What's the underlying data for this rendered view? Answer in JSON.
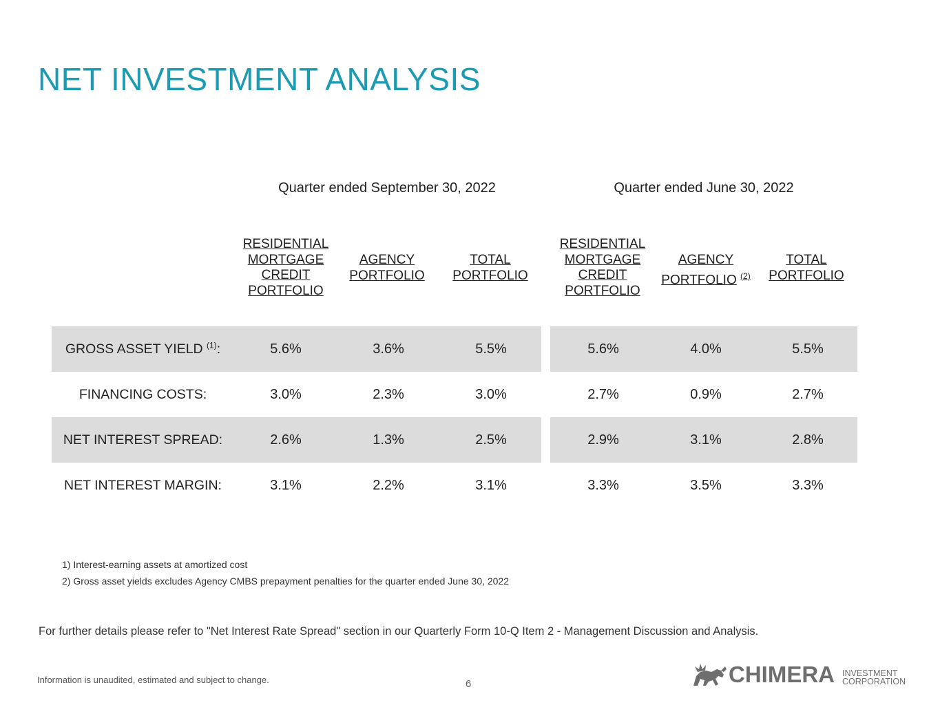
{
  "title": "NET INVESTMENT ANALYSIS",
  "periods": [
    {
      "label": "Quarter ended September 30, 2022"
    },
    {
      "label": "Quarter ended June 30, 2022"
    }
  ],
  "column_headers": [
    {
      "text": "RESIDENTIAL\nMORTGAGE\nCREDIT\nPORTFOLIO",
      "note": ""
    },
    {
      "text": "AGENCY\nPORTFOLIO",
      "note": ""
    },
    {
      "text": "TOTAL\nPORTFOLIO",
      "note": ""
    },
    {
      "text": "RESIDENTIAL\nMORTGAGE\nCREDIT\nPORTFOLIO",
      "note": ""
    },
    {
      "text": "AGENCY\nPORTFOLIO",
      "note": "(2)"
    },
    {
      "text": "TOTAL\nPORTFOLIO",
      "note": ""
    }
  ],
  "rows": [
    {
      "label": "GROSS ASSET YIELD",
      "note": "(1)",
      "suffix": ":",
      "values": [
        "5.6%",
        "3.6%",
        "5.5%",
        "5.6%",
        "4.0%",
        "5.5%"
      ]
    },
    {
      "label": "FINANCING COSTS:",
      "note": "",
      "suffix": "",
      "values": [
        "3.0%",
        "2.3%",
        "3.0%",
        "2.7%",
        "0.9%",
        "2.7%"
      ]
    },
    {
      "label": "NET INTEREST SPREAD:",
      "note": "",
      "suffix": "",
      "values": [
        "2.6%",
        "1.3%",
        "2.5%",
        "2.9%",
        "3.1%",
        "2.8%"
      ]
    },
    {
      "label": "NET INTEREST MARGIN:",
      "note": "",
      "suffix": "",
      "values": [
        "3.1%",
        "2.2%",
        "3.1%",
        "3.3%",
        "3.5%",
        "3.3%"
      ]
    }
  ],
  "footnotes": [
    "1) Interest-earning assets at amortized cost",
    "2) Gross asset yields excludes Agency CMBS prepayment penalties for the quarter ended  June 30, 2022"
  ],
  "details_text": "For further details please refer to \"Net Interest Rate Spread\" section in our Quarterly Form 10-Q  Item 2 - Management Discussion and Analysis.",
  "disclaimer": "Information is unaudited, estimated and subject to change.",
  "page_number": "6",
  "logo": {
    "name": "CHIMERA",
    "subtitle": "INVESTMENT\nCORPORATION",
    "icon": "chimera-creature-icon"
  },
  "colors": {
    "title": "#1d9bb3",
    "band": "#dcdcdc",
    "logo": "#6e6e6e"
  }
}
